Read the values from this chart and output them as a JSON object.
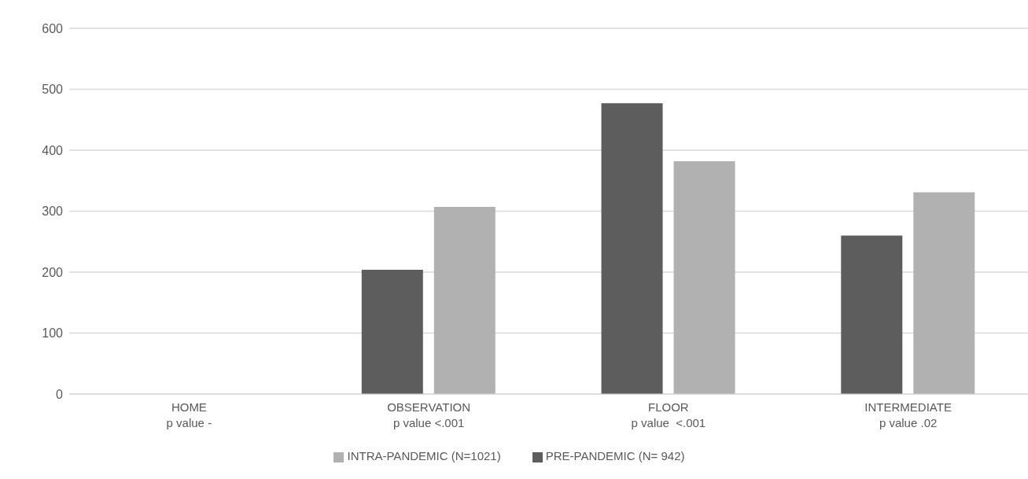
{
  "chart_data": {
    "type": "bar",
    "categories": [
      "HOME\np value -",
      "OBSERVATION\np value <.001",
      "FLOOR\np value  <.001",
      "INTERMEDIATE\np value .02"
    ],
    "series": [
      {
        "name": "PRE-PANDEMIC (N= 942)",
        "color": "#5d5d5d",
        "values": [
          0,
          204,
          477,
          260
        ]
      },
      {
        "name": "INTRA-PANDEMIC (N=1021)",
        "color": "#b1b1b1",
        "values": [
          0,
          307,
          382,
          331
        ]
      }
    ],
    "ylim": [
      0,
      600
    ],
    "yticks": [
      0,
      100,
      200,
      300,
      400,
      500,
      600
    ],
    "grid": "y",
    "legend": "bottom"
  }
}
